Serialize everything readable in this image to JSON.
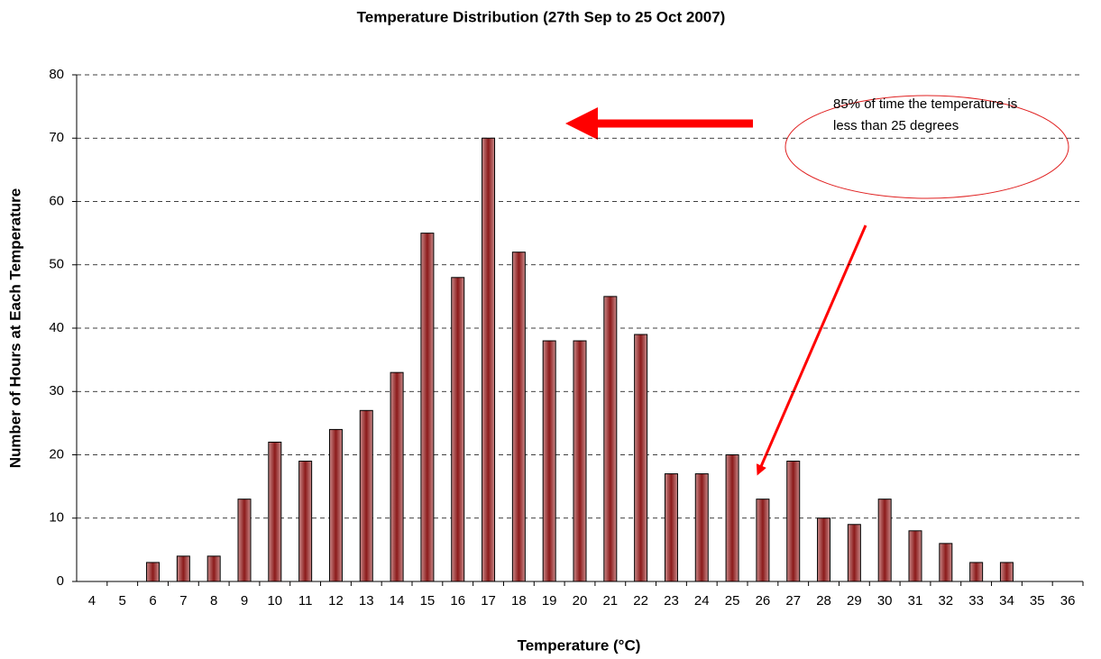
{
  "chart_data": {
    "type": "bar",
    "title": "Temperature Distribution (27th Sep to 25 Oct 2007)",
    "x_label": "Temperature (°C)",
    "y_label": "Number of Hours at Each Temperature",
    "annotation": "85% of time the temperature is less than 25 degrees",
    "categories": [
      "4",
      "5",
      "6",
      "7",
      "8",
      "9",
      "10",
      "11",
      "12",
      "13",
      "14",
      "15",
      "16",
      "17",
      "18",
      "19",
      "20",
      "21",
      "22",
      "23",
      "24",
      "25",
      "26",
      "27",
      "28",
      "29",
      "30",
      "31",
      "32",
      "33",
      "34",
      "35",
      "36"
    ],
    "values": [
      0,
      0,
      3,
      4,
      4,
      13,
      22,
      19,
      24,
      27,
      33,
      55,
      48,
      70,
      52,
      38,
      38,
      45,
      39,
      17,
      17,
      20,
      13,
      19,
      10,
      9,
      13,
      8,
      6,
      3,
      3,
      0,
      0
    ],
    "color": "#8b1a1a",
    "ylim": [
      0,
      80
    ],
    "yticks": [
      0,
      10,
      20,
      30,
      40,
      50,
      60,
      70,
      80
    ],
    "grid": true
  }
}
